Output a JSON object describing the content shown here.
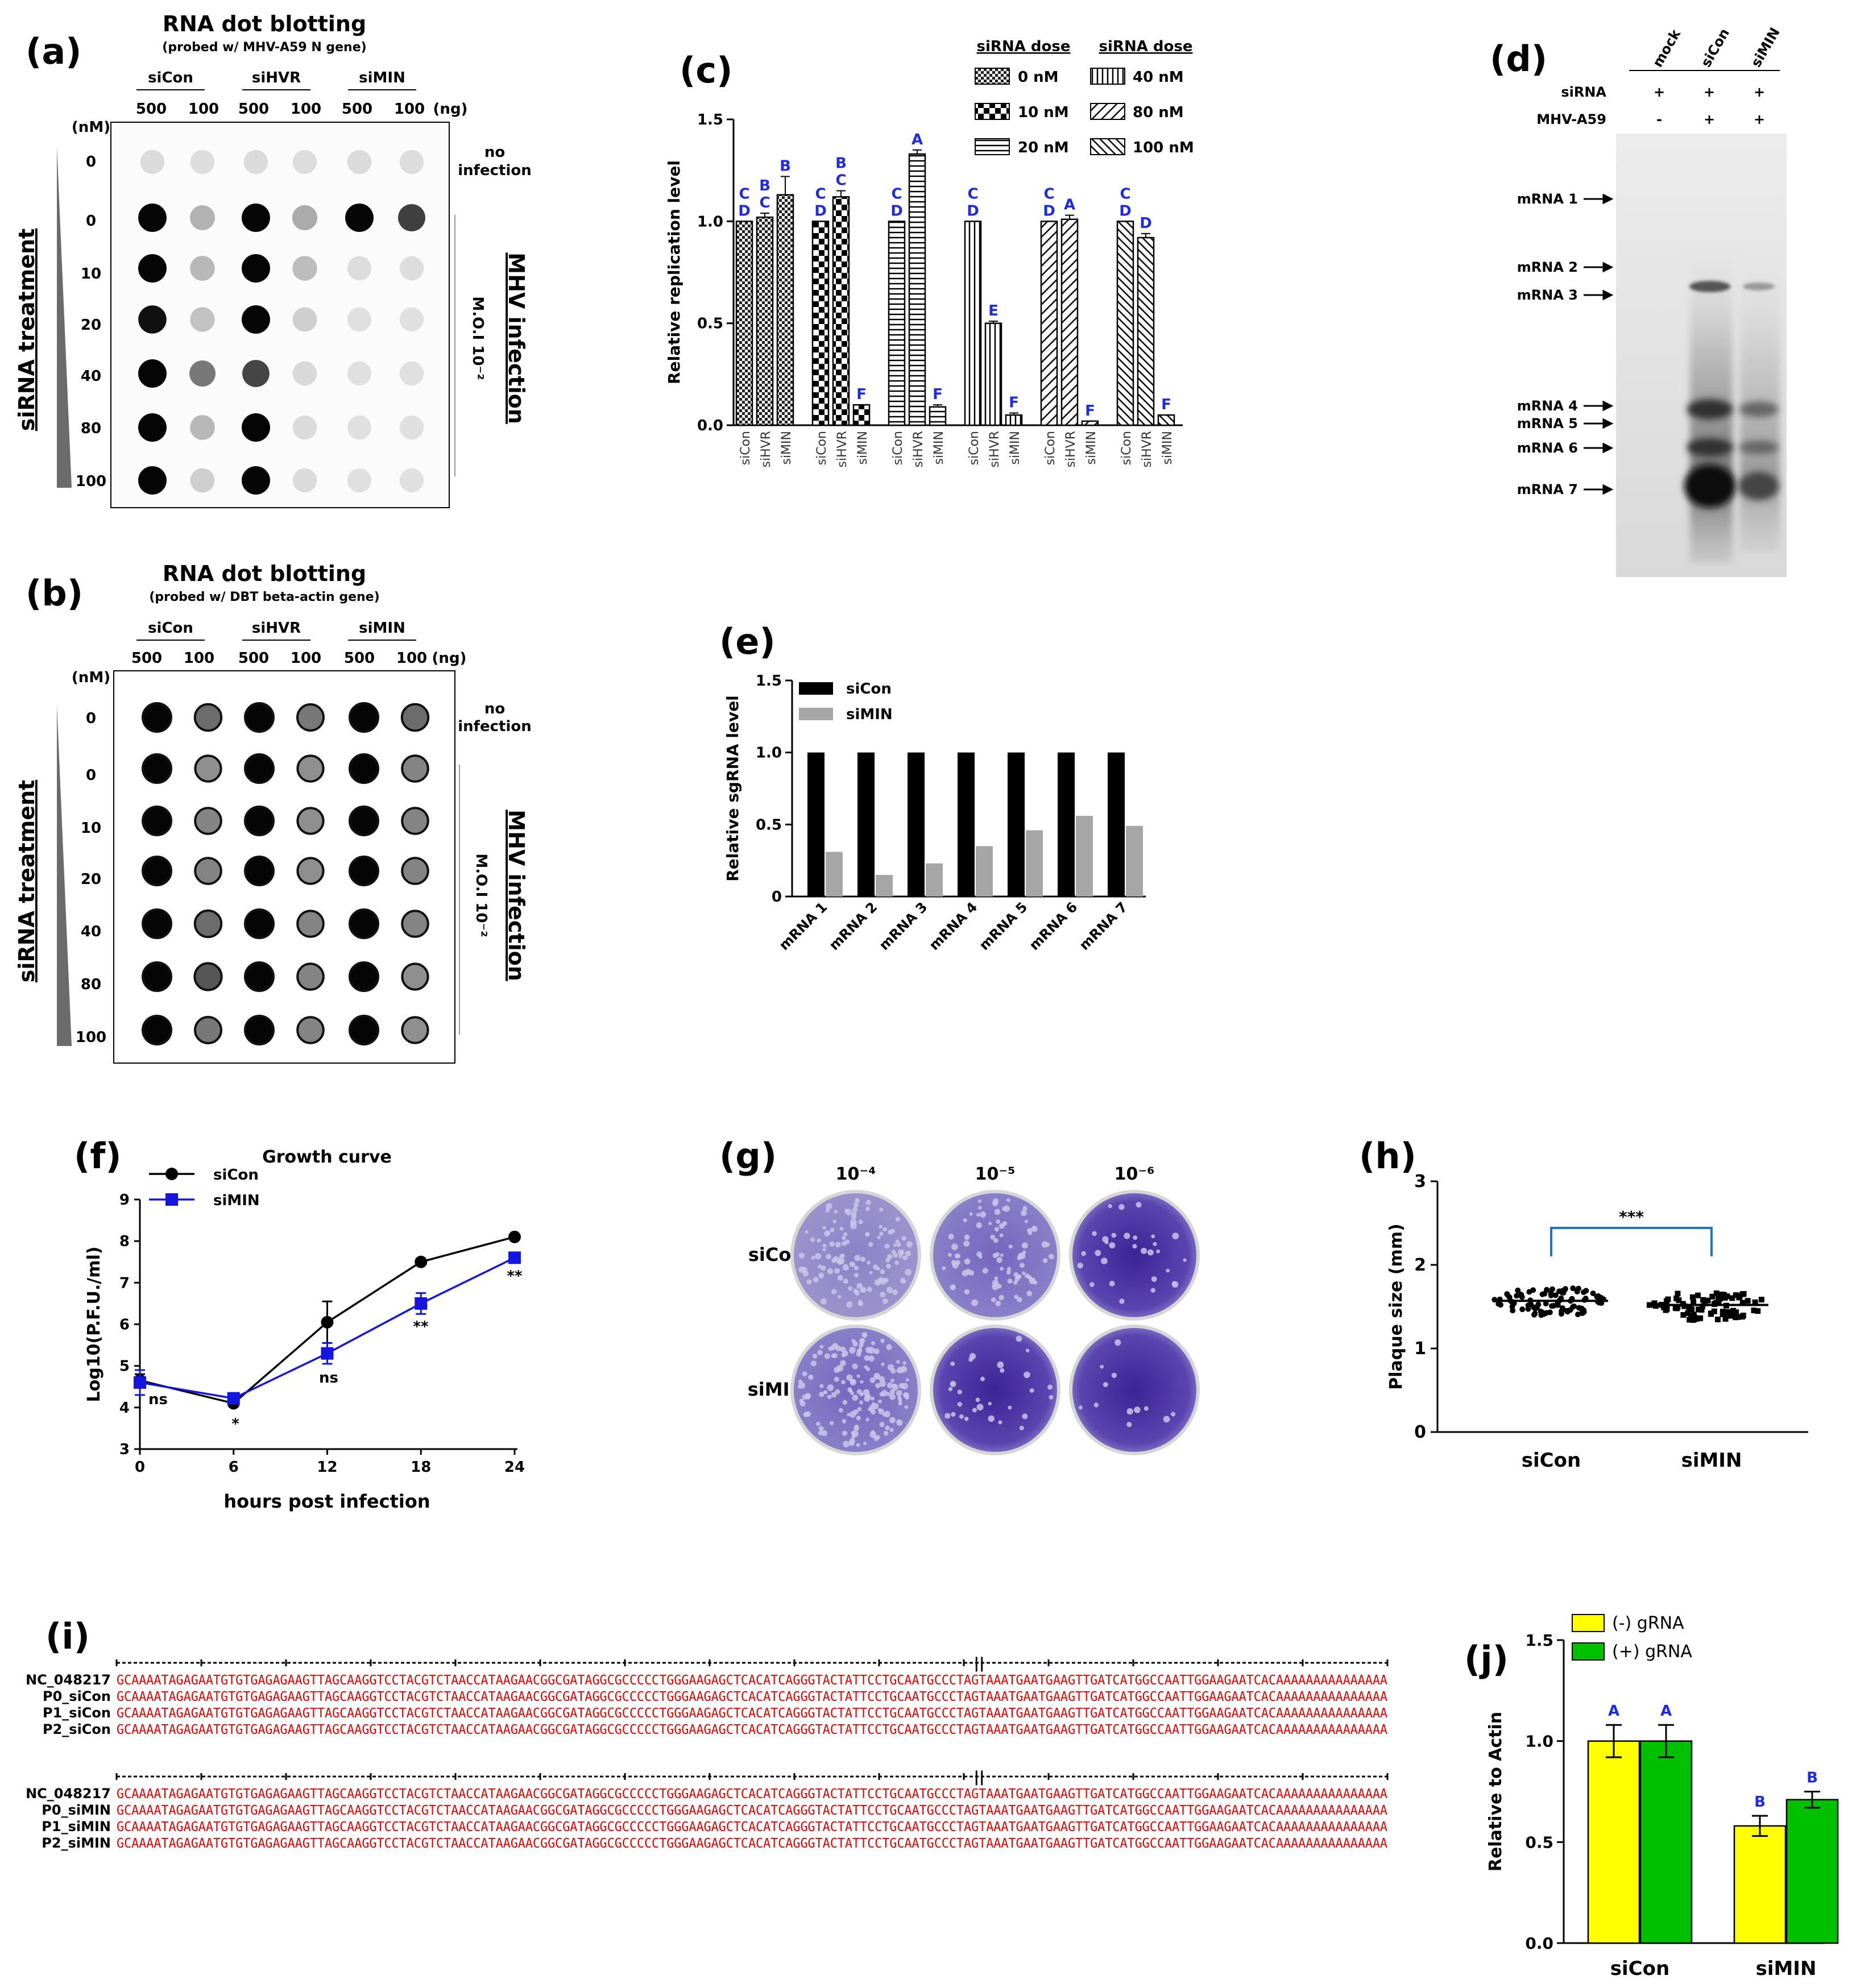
{
  "panels": {
    "a": {
      "letter": "(a)",
      "title": "RNA dot blotting",
      "subtitle": "(probed w/ MHV-A59 N gene)",
      "groups": [
        "siCon",
        "siHVR",
        "siMIN"
      ],
      "amounts": [
        "500",
        "100",
        "500",
        "100",
        "500",
        "100"
      ],
      "amount_unit": "(ng)",
      "dose_unit": "(nM)",
      "doses": [
        "0",
        "0",
        "10",
        "20",
        "40",
        "80",
        "100"
      ],
      "no_infection": [
        "no",
        "infection"
      ],
      "treatment_label": "siRNA treatment",
      "infection_label": "MHV infection",
      "moi_label": "M.O.I 10⁻²",
      "dot_darkness": [
        [
          0.07,
          0.06,
          0.07,
          0.06,
          0.07,
          0.06
        ],
        [
          1.0,
          0.25,
          1.0,
          0.28,
          1.0,
          0.75
        ],
        [
          1.0,
          0.22,
          1.0,
          0.2,
          0.06,
          0.06
        ],
        [
          0.95,
          0.18,
          1.0,
          0.12,
          0.05,
          0.05
        ],
        [
          1.0,
          0.5,
          0.72,
          0.08,
          0.05,
          0.05
        ],
        [
          1.0,
          0.22,
          1.0,
          0.07,
          0.05,
          0.05
        ],
        [
          1.0,
          0.12,
          1.0,
          0.07,
          0.05,
          0.05
        ]
      ]
    },
    "b": {
      "letter": "(b)",
      "title": "RNA dot blotting",
      "subtitle": "(probed w/ DBT beta-actin gene)",
      "groups": [
        "siCon",
        "siHVR",
        "siMIN"
      ],
      "amounts": [
        "500",
        "100",
        "500",
        "100",
        "500",
        "100"
      ],
      "amount_unit": "(ng)",
      "dose_unit": "(nM)",
      "doses": [
        "0",
        "0",
        "10",
        "20",
        "40",
        "80",
        "100"
      ],
      "no_infection": [
        "no",
        "infection"
      ],
      "treatment_label": "siRNA treatment",
      "infection_label": "MHV infection",
      "moi_label": "M.O.I 10⁻²",
      "dot_darkness": [
        [
          1.0,
          0.55,
          1.0,
          0.5,
          1.0,
          0.55
        ],
        [
          1.0,
          0.4,
          1.0,
          0.4,
          1.0,
          0.45
        ],
        [
          1.0,
          0.45,
          1.0,
          0.4,
          1.0,
          0.45
        ],
        [
          1.0,
          0.45,
          1.0,
          0.4,
          1.0,
          0.45
        ],
        [
          1.0,
          0.55,
          1.0,
          0.45,
          1.0,
          0.45
        ],
        [
          1.0,
          0.65,
          1.0,
          0.45,
          1.0,
          0.4
        ],
        [
          1.0,
          0.5,
          1.0,
          0.45,
          1.0,
          0.4
        ]
      ]
    },
    "c": {
      "letter": "(c)",
      "legend_title": "siRNA dose",
      "legend": [
        "0 nM",
        "10 nM",
        "20 nM",
        "40 nM",
        "80 nM",
        "100 nM"
      ],
      "groups": [
        "0 nM",
        "10 nM",
        "20 nM",
        "40 nM",
        "80 nM",
        "100 nM"
      ],
      "bar_labels": [
        "siCon",
        "siHVR",
        "siMIN"
      ]
    },
    "d": {
      "letter": "(d)",
      "lanes": [
        "mock",
        "siCon",
        "siMIN"
      ],
      "rows": [
        {
          "label": "siRNA",
          "values": [
            "+",
            "+",
            "+"
          ]
        },
        {
          "label": "MHV-A59",
          "values": [
            "-",
            "+",
            "+"
          ]
        }
      ],
      "bands": [
        "mRNA 1",
        "mRNA 2",
        "mRNA 3",
        "mRNA 4",
        "mRNA 5",
        "mRNA 6",
        "mRNA 7"
      ]
    },
    "e": {
      "letter": "(e)"
    },
    "f": {
      "letter": "(f)"
    },
    "g": {
      "letter": "(g)",
      "dilutions": [
        "10⁻⁴",
        "10⁻⁵",
        "10⁻⁶"
      ],
      "rows": [
        "siCon",
        "siMIN"
      ]
    },
    "h": {
      "letter": "(h)"
    },
    "i": {
      "letter": "(i)",
      "sequence": "GCAAAATAGAGAATGTGTGAGAGAAGTTAGCAAGGTCCTACGTCTAACCATAAGAACGGCGATAGGCGCCCCCTGGGAAGAGCTCACATCAGGGTACTATTCCTGCAATGCCCTAGTAAATGAATGAAGTTGATCATGGCCAATTGGAAGAATCACAAAAAAAAAAAAAAA",
      "blocks": [
        {
          "names": [
            "NC_048217",
            "P0_siCon",
            "P1_siCon",
            "P2_siCon"
          ]
        },
        {
          "names": [
            "NC_048217",
            "P0_siMIN",
            "P1_siMIN",
            "P2_siMIN"
          ]
        }
      ]
    },
    "j": {
      "letter": "(j)"
    }
  },
  "chart_data": [
    {
      "panel": "c",
      "type": "bar",
      "ylabel": "Relative replication level",
      "ylim": [
        0.0,
        1.5
      ],
      "yticks": [
        "0.0",
        "0.5",
        "1.0",
        "1.5"
      ],
      "categories": [
        "siCon",
        "siHVR",
        "siMIN"
      ],
      "series": [
        {
          "name": "0 nM",
          "values": [
            1.0,
            1.02,
            1.13
          ],
          "errors": [
            0.0,
            0.02,
            0.09
          ],
          "letters": [
            "C D",
            "B C",
            "B"
          ]
        },
        {
          "name": "10 nM",
          "values": [
            1.0,
            1.12,
            0.1
          ],
          "errors": [
            0.0,
            0.03,
            0.0
          ],
          "letters": [
            "C D",
            "B C",
            "F"
          ]
        },
        {
          "name": "20 nM",
          "values": [
            1.0,
            1.33,
            0.09
          ],
          "errors": [
            0.0,
            0.02,
            0.01
          ],
          "letters": [
            "C D",
            "A",
            "F"
          ]
        },
        {
          "name": "40 nM",
          "values": [
            1.0,
            0.5,
            0.05
          ],
          "errors": [
            0.0,
            0.01,
            0.01
          ],
          "letters": [
            "C D",
            "E",
            "F"
          ]
        },
        {
          "name": "80 nM",
          "values": [
            1.0,
            1.01,
            0.02
          ],
          "errors": [
            0.0,
            0.02,
            0.0
          ],
          "letters": [
            "C D",
            "A",
            "F"
          ]
        },
        {
          "name": "100 nM",
          "values": [
            1.0,
            0.92,
            0.05
          ],
          "errors": [
            0.0,
            0.02,
            0.0
          ],
          "letters": [
            "C D",
            "D",
            "F"
          ]
        }
      ]
    },
    {
      "panel": "e",
      "type": "bar",
      "ylabel": "Relative sgRNA level",
      "ylim": [
        0,
        1.5
      ],
      "yticks": [
        "0",
        "0.5",
        "1.0",
        "1.5"
      ],
      "categories": [
        "mRNA 1",
        "mRNA 2",
        "mRNA 3",
        "mRNA 4",
        "mRNA 5",
        "mRNA 6",
        "mRNA 7"
      ],
      "series": [
        {
          "name": "siCon",
          "color": "#000000",
          "values": [
            1.0,
            1.0,
            1.0,
            1.0,
            1.0,
            1.0,
            1.0
          ]
        },
        {
          "name": "siMIN",
          "color": "#a6a6a6",
          "values": [
            0.31,
            0.15,
            0.23,
            0.35,
            0.46,
            0.56,
            0.49
          ]
        }
      ]
    },
    {
      "panel": "f",
      "type": "line",
      "title": "Growth curve",
      "xlabel": "hours post infection",
      "ylabel": "Log10(P.F.U./ml)",
      "x": [
        0,
        6,
        12,
        18,
        24
      ],
      "xticks": [
        "0",
        "6",
        "12",
        "18",
        "24"
      ],
      "xlim": [
        0,
        24
      ],
      "ylim": [
        3,
        9
      ],
      "yticks": [
        "3",
        "4",
        "5",
        "6",
        "7",
        "8",
        "9"
      ],
      "series": [
        {
          "name": "siCon",
          "color": "#000000",
          "marker": "circle",
          "values": [
            4.65,
            4.1,
            6.05,
            7.5,
            8.1
          ],
          "errors": [
            0.15,
            0.05,
            0.5,
            0.05,
            0.05
          ]
        },
        {
          "name": "siMIN",
          "color": "#1515e0",
          "marker": "square",
          "values": [
            4.6,
            4.22,
            5.3,
            6.5,
            7.6
          ],
          "errors": [
            0.3,
            0.05,
            0.25,
            0.25,
            0.1
          ]
        }
      ],
      "annotations": [
        "ns",
        "*",
        "ns",
        "**",
        "**"
      ]
    },
    {
      "panel": "h",
      "type": "scatter",
      "ylabel": "Plaque size (mm)",
      "ylim": [
        0,
        3
      ],
      "yticks": [
        "0",
        "1",
        "2",
        "3"
      ],
      "categories": [
        "siCon",
        "siMIN"
      ],
      "series": [
        {
          "name": "siCon",
          "mean": 1.57,
          "min": 1.4,
          "max": 1.72
        },
        {
          "name": "siMIN",
          "mean": 1.52,
          "min": 1.34,
          "max": 1.66
        }
      ],
      "significance": "***"
    },
    {
      "panel": "j",
      "type": "bar",
      "ylabel": "Relative to Actin",
      "ylim": [
        0.0,
        1.5
      ],
      "yticks": [
        "0.0",
        "0.5",
        "1.0",
        "1.5"
      ],
      "categories": [
        "siCon",
        "siMIN"
      ],
      "series": [
        {
          "name": "(-) gRNA",
          "color": "#ffff00",
          "values": [
            1.0,
            0.58
          ],
          "errors": [
            0.08,
            0.05
          ],
          "letters": [
            "A",
            "B"
          ]
        },
        {
          "name": "(+) gRNA",
          "color": "#00c000",
          "values": [
            1.0,
            0.71
          ],
          "errors": [
            0.08,
            0.04
          ],
          "letters": [
            "A",
            "B"
          ]
        }
      ]
    }
  ]
}
